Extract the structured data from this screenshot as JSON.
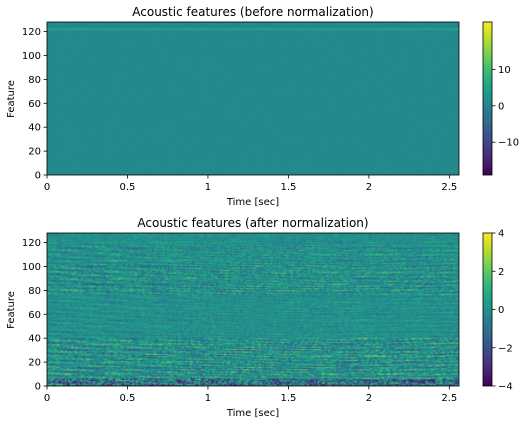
{
  "colormap": {
    "name": "viridis",
    "stops": [
      "#440154",
      "#482878",
      "#3e4989",
      "#31688e",
      "#26828e",
      "#1f9e89",
      "#35b779",
      "#6ece58",
      "#b5de2b",
      "#fde725"
    ]
  },
  "chart_data": [
    {
      "type": "heatmap",
      "title": "Acoustic features (before normalization)",
      "xlabel": "Time [sec]",
      "ylabel": "Feature",
      "xlim": [
        0,
        2.56
      ],
      "ylim": [
        0,
        128
      ],
      "xticks": [
        0,
        0.5,
        1,
        1.5,
        2,
        2.5
      ],
      "xtick_labels": [
        "0",
        "0.5",
        "1",
        "1.5",
        "2",
        "2.5"
      ],
      "yticks": [
        0,
        20,
        40,
        60,
        80,
        100,
        120
      ],
      "ytick_labels": [
        "0",
        "20",
        "40",
        "60",
        "80",
        "100",
        "120"
      ],
      "colorbar": {
        "range": [
          -19,
          23
        ],
        "ticks": [
          -10,
          0,
          10
        ],
        "tick_labels": [
          "−10",
          "0",
          "10"
        ]
      },
      "background_value": 0.8,
      "features": 128,
      "frames": 256,
      "notes": "Nearly uniform near 0 except bright row near top (feature ~122) and slightly varied bottom rows"
    },
    {
      "type": "heatmap",
      "title": "Acoustic features (after normalization)",
      "xlabel": "Time [sec]",
      "ylabel": "Feature",
      "xlim": [
        0,
        2.56
      ],
      "ylim": [
        0,
        128
      ],
      "xticks": [
        0,
        0.5,
        1,
        1.5,
        2,
        2.5
      ],
      "xtick_labels": [
        "0",
        "0.5",
        "1",
        "1.5",
        "2",
        "2.5"
      ],
      "yticks": [
        0,
        20,
        40,
        60,
        80,
        100,
        120
      ],
      "ytick_labels": [
        "0",
        "20",
        "40",
        "60",
        "80",
        "100",
        "120"
      ],
      "colorbar": {
        "range": [
          -4,
          4
        ],
        "ticks": [
          -4,
          -2,
          0,
          2,
          4
        ],
        "tick_labels": [
          "−4",
          "−2",
          "0",
          "2",
          "4"
        ]
      },
      "features": 128,
      "frames": 256,
      "notes": "Textured normalized features, strong variation in low features (0-40) and band near 80-100"
    }
  ]
}
